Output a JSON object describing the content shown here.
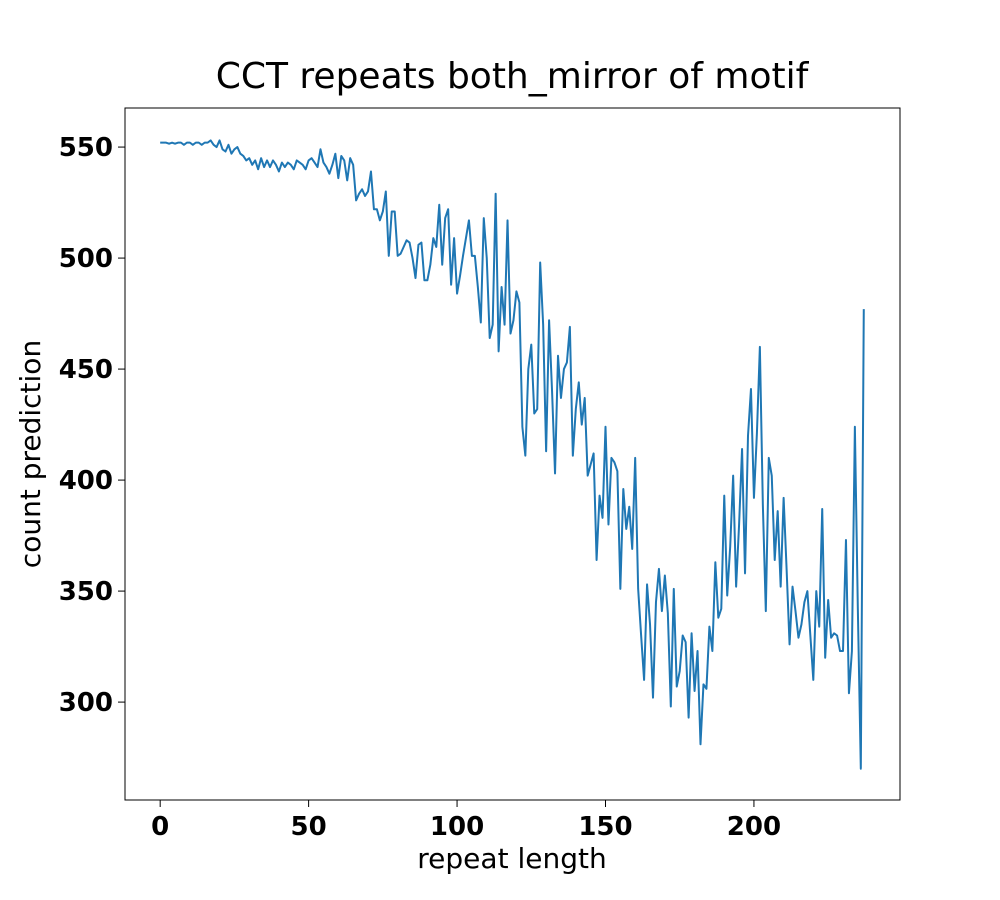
{
  "chart_data": {
    "type": "line",
    "title": "CCT repeats both_mirror of motif",
    "xlabel": "repeat length",
    "ylabel": "count prediction",
    "color": "#1f77b4",
    "grid": false,
    "xlim": [
      -11.85,
      249.2
    ],
    "ylim": [
      255.9,
      567.6
    ],
    "xticks": [
      0,
      50,
      100,
      150,
      200
    ],
    "yticks": [
      300,
      350,
      400,
      450,
      500,
      550
    ],
    "x": [
      0,
      1,
      2,
      3,
      4,
      5,
      6,
      7,
      8,
      9,
      10,
      11,
      12,
      13,
      14,
      15,
      16,
      17,
      18,
      19,
      20,
      21,
      22,
      23,
      24,
      25,
      26,
      27,
      28,
      29,
      30,
      31,
      32,
      33,
      34,
      35,
      36,
      37,
      38,
      39,
      40,
      41,
      42,
      43,
      44,
      45,
      46,
      47,
      48,
      49,
      50,
      51,
      52,
      53,
      54,
      55,
      56,
      57,
      58,
      59,
      60,
      61,
      62,
      63,
      64,
      65,
      66,
      67,
      68,
      69,
      70,
      71,
      72,
      73,
      74,
      75,
      76,
      77,
      78,
      79,
      80,
      81,
      82,
      83,
      84,
      85,
      86,
      87,
      88,
      89,
      90,
      91,
      92,
      93,
      94,
      95,
      96,
      97,
      98,
      99,
      100,
      101,
      102,
      103,
      104,
      105,
      106,
      107,
      108,
      109,
      110,
      111,
      112,
      113,
      114,
      115,
      116,
      117,
      118,
      119,
      120,
      121,
      122,
      123,
      124,
      125,
      126,
      127,
      128,
      129,
      130,
      131,
      132,
      133,
      134,
      135,
      136,
      137,
      138,
      139,
      140,
      141,
      142,
      143,
      144,
      145,
      146,
      147,
      148,
      149,
      150,
      151,
      152,
      153,
      154,
      155,
      156,
      157,
      158,
      159,
      160,
      161,
      162,
      163,
      164,
      165,
      166,
      167,
      168,
      169,
      170,
      171,
      172,
      173,
      174,
      175,
      176,
      177,
      178,
      179,
      180,
      181,
      182,
      183,
      184,
      185,
      186,
      187,
      188,
      189,
      190,
      191,
      192,
      193,
      194,
      195,
      196,
      197,
      198,
      199,
      200,
      201,
      202,
      203,
      204,
      205,
      206,
      207,
      208,
      209,
      210,
      211,
      212,
      213,
      214,
      215,
      216,
      217,
      218,
      219,
      220,
      221,
      222,
      223,
      224,
      225,
      226,
      227,
      228,
      229,
      230,
      231,
      232,
      233,
      234,
      235,
      236,
      237
    ],
    "values": [
      552,
      552,
      552,
      551.5,
      552,
      551.5,
      552,
      552,
      551,
      552,
      552,
      551,
      552,
      552,
      551,
      552,
      552,
      553,
      551,
      550,
      553,
      549,
      548,
      551,
      547,
      549,
      550,
      547,
      546,
      544,
      545,
      542,
      544,
      540,
      545,
      541,
      544,
      541,
      544,
      542,
      539,
      543,
      541,
      543,
      542,
      540,
      544,
      543,
      542,
      540,
      544,
      545,
      543,
      541,
      549,
      543,
      541,
      538,
      542,
      547,
      536,
      546,
      544,
      535,
      545,
      542,
      526,
      529,
      531,
      528,
      530,
      539,
      522,
      522,
      517,
      521,
      530,
      501,
      521,
      521,
      501,
      502,
      505,
      508,
      507,
      500,
      491,
      506,
      507,
      490,
      490,
      497,
      509,
      505,
      524,
      497,
      518,
      522,
      488,
      509,
      484,
      492,
      501,
      509,
      517,
      501,
      501,
      487,
      471,
      518,
      500,
      464,
      470,
      529,
      458,
      487,
      470,
      517,
      466,
      472,
      485,
      480,
      424,
      411,
      450,
      461,
      430,
      432,
      498,
      470,
      413,
      472,
      440,
      403,
      456,
      437,
      450,
      453,
      469,
      411,
      432,
      444,
      425,
      437,
      402,
      407,
      412,
      364,
      393,
      383,
      424,
      380,
      410,
      408,
      404,
      351,
      396,
      378,
      388,
      369,
      410,
      351,
      330,
      310,
      353,
      335,
      302,
      345,
      360,
      341,
      357,
      340,
      298,
      351,
      307,
      314,
      330,
      327,
      293,
      331,
      305,
      323,
      281,
      308,
      306,
      334,
      323,
      363,
      338,
      342,
      393,
      348,
      370,
      402,
      352,
      380,
      414,
      358,
      420,
      441,
      392,
      421,
      460,
      389,
      341,
      410,
      402,
      364,
      386,
      352,
      392,
      360,
      326,
      352,
      341,
      329,
      335,
      345,
      350,
      330,
      310,
      350,
      334,
      387,
      320,
      346,
      329,
      331,
      330,
      323,
      323,
      373,
      304,
      323,
      424,
      342,
      270,
      477
    ]
  }
}
